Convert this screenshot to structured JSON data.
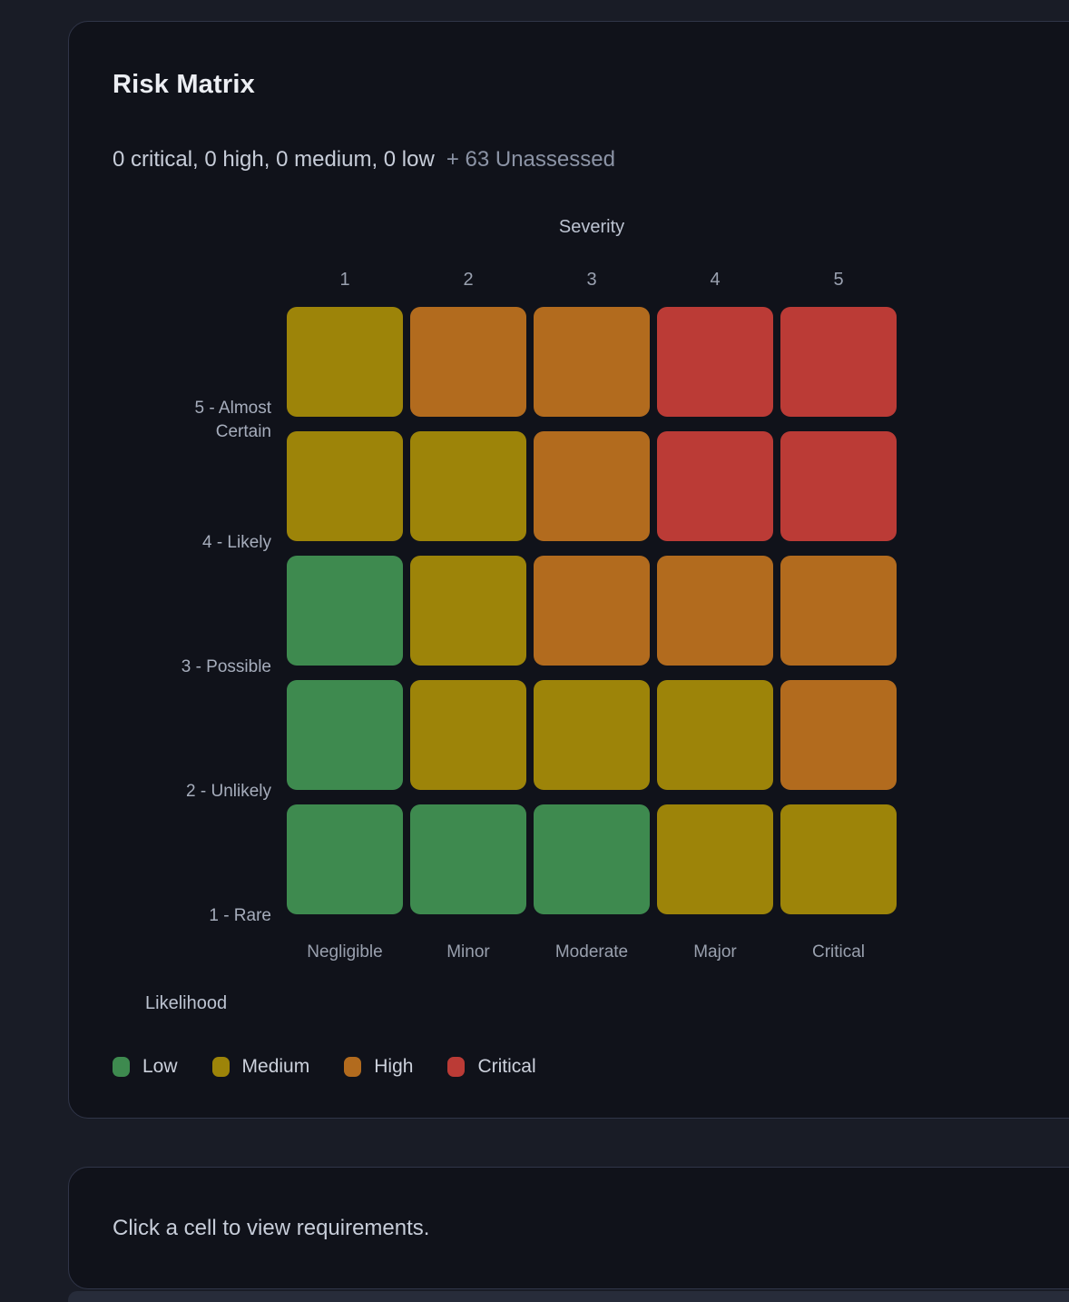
{
  "card": {
    "title": "Risk Matrix",
    "summary": "0 critical, 0 high, 0 medium, 0 low",
    "unassessed": "+ 63 Unassessed"
  },
  "chart_data": {
    "type": "heatmap",
    "title": "Risk Matrix",
    "x_axis": {
      "title": "Severity",
      "tick_numbers": [
        "1",
        "2",
        "3",
        "4",
        "5"
      ],
      "tick_names": [
        "Negligible",
        "Minor",
        "Moderate",
        "Major",
        "Critical"
      ]
    },
    "y_axis": {
      "title": "Likelihood",
      "tick_labels": [
        "5 - Almost Certain",
        "4 - Likely",
        "3 - Possible",
        "2 - Unlikely",
        "1 - Rare"
      ]
    },
    "rows": [
      {
        "likelihood": 5,
        "label": "5 - Almost Certain",
        "cells": [
          "medium",
          "high",
          "high",
          "critical",
          "critical"
        ]
      },
      {
        "likelihood": 4,
        "label": "4 - Likely",
        "cells": [
          "medium",
          "medium",
          "high",
          "critical",
          "critical"
        ]
      },
      {
        "likelihood": 3,
        "label": "3 - Possible",
        "cells": [
          "low",
          "medium",
          "high",
          "high",
          "high"
        ]
      },
      {
        "likelihood": 2,
        "label": "2 - Unlikely",
        "cells": [
          "low",
          "medium",
          "medium",
          "medium",
          "high"
        ]
      },
      {
        "likelihood": 1,
        "label": "1 - Rare",
        "cells": [
          "low",
          "low",
          "low",
          "medium",
          "medium"
        ]
      }
    ],
    "colors": {
      "low": "#3e8a4f",
      "medium": "#9d8409",
      "high": "#b26b1e",
      "critical": "#bb3b36"
    },
    "legend": [
      {
        "label": "Low",
        "level": "low"
      },
      {
        "label": "Medium",
        "level": "medium"
      },
      {
        "label": "High",
        "level": "high"
      },
      {
        "label": "Critical",
        "level": "critical"
      }
    ],
    "legend_position": "bottom-left",
    "grid": false
  },
  "footer_card": {
    "message": "Click a cell to view requirements."
  }
}
